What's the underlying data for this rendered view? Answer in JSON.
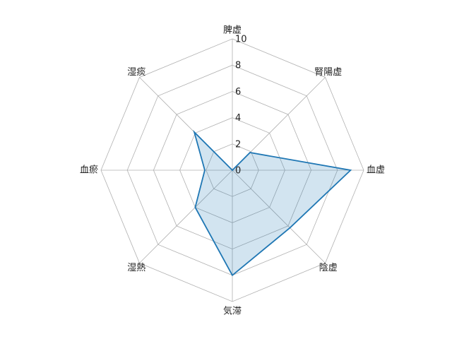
{
  "chart_data": {
    "type": "radar",
    "categories": [
      "脾虚",
      "腎陽虚",
      "血虚",
      "陰虚",
      "気滞",
      "湿熱",
      "血瘀",
      "湿痰"
    ],
    "series": [
      {
        "values": [
          0,
          1.9,
          9,
          6.2,
          8,
          4,
          2.1,
          4.1
        ]
      }
    ],
    "rlim": [
      0,
      10
    ],
    "r_ticks": [
      "0",
      "2",
      "4",
      "6",
      "8",
      "10"
    ],
    "grid": true,
    "colors": {
      "series": "#1f77b4",
      "grid": "#b0b0b0"
    }
  }
}
